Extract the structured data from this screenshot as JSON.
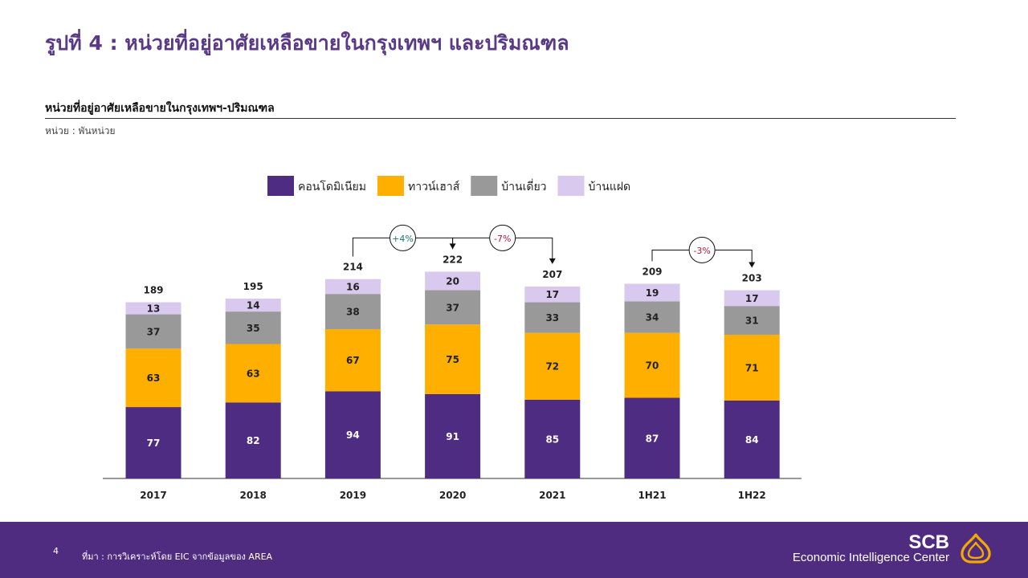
{
  "page": {
    "title": "รูปที่ 4 : หน่วยที่อยู่อาศัยเหลือขายในกรุงเทพฯ และปริมณฑล",
    "subtitle": "หน่วยที่อยู่อาศัยเหลือขายในกรุงเทพฯ-ปริมณฑล",
    "unit": "หน่วย : พันหน่วย"
  },
  "footer": {
    "page_number": "4",
    "source": "ที่มา : การวิเคราะห์โดย EIC จากข้อมูลของ AREA",
    "brand_short": "SCB",
    "brand_long": "Economic Intelligence Center"
  },
  "colors": {
    "brand": "#4f2c80",
    "title": "#5a3a86",
    "positive": "#1a7a6a",
    "negative": "#b5173b"
  },
  "chart_data": {
    "type": "bar",
    "stacked": true,
    "categories": [
      "2017",
      "2018",
      "2019",
      "2020",
      "2021",
      "1H21",
      "1H22"
    ],
    "series": [
      {
        "name": "คอนโดมิเนียม",
        "color": "#4e2c81",
        "values": [
          77,
          82,
          94,
          91,
          85,
          87,
          84
        ]
      },
      {
        "name": "ทาวน์เฮาส์",
        "color": "#ffaf00",
        "values": [
          63,
          63,
          67,
          75,
          72,
          70,
          71
        ]
      },
      {
        "name": "บ้านเดี่ยว",
        "color": "#999999",
        "values": [
          37,
          35,
          38,
          37,
          33,
          34,
          31
        ]
      },
      {
        "name": "บ้านแฝด",
        "color": "#d9c9ee",
        "values": [
          13,
          14,
          16,
          20,
          17,
          19,
          17
        ]
      }
    ],
    "totals": [
      189,
      195,
      214,
      222,
      207,
      209,
      203
    ],
    "legend_position": "top",
    "grid": false,
    "annotations": [
      {
        "from": "2019",
        "to": "2020",
        "label": "+4%",
        "tone": "positive"
      },
      {
        "from": "2020",
        "to": "2021",
        "label": "-7%",
        "tone": "negative"
      },
      {
        "from": "1H21",
        "to": "1H22",
        "label": "-3%",
        "tone": "negative"
      }
    ]
  }
}
